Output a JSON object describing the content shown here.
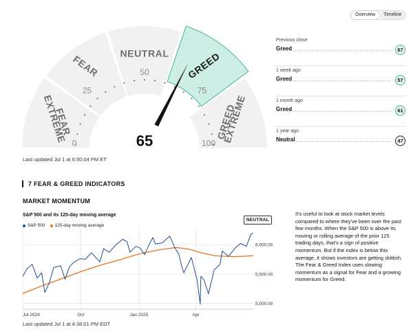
{
  "view_toggle": {
    "options": [
      "Overview",
      "Timeline"
    ],
    "active": "Overview"
  },
  "gauge": {
    "value": 65,
    "segments": [
      "EXTREME FEAR",
      "FEAR",
      "NEUTRAL",
      "GREED",
      "EXTREME GREED"
    ],
    "active_segment": "GREED",
    "tick_labels": [
      "0",
      "25",
      "50",
      "75",
      "100"
    ],
    "last_updated": "Last updated Jul 1 at 6:50:04 PM ET",
    "colors": {
      "active_fill": "#cdeee4",
      "active_stroke": "#3fb598",
      "inactive_fill": "#f1f1f1",
      "needle": "#111111"
    }
  },
  "history": [
    {
      "label": "Previous close",
      "value": "Greed",
      "score": "67",
      "color": "#3fb598",
      "bg": "#e7f6f0"
    },
    {
      "label": "1 week ago",
      "value": "Greed",
      "score": "57",
      "color": "#3fb598",
      "bg": "#e7f6f0"
    },
    {
      "label": "1 month ago",
      "value": "Greed",
      "score": "61",
      "color": "#3fb598",
      "bg": "#e7f6f0"
    },
    {
      "label": "1 year ago",
      "value": "Neutral",
      "score": "47",
      "color": "#222222",
      "bg": "#f2f2f2"
    }
  ],
  "section": {
    "title": "7 FEAR & GREED INDICATORS"
  },
  "indicator": {
    "title": "MARKET MOMENTUM",
    "status": "NEUTRAL",
    "chart_title": "S&P 500 and its 125-day moving average",
    "description": "It's useful to look at stock market levels compared to where they've been over the past few months. When the S&P 500 is above its moving or rolling average of the prior 125 trading days, that's a sign of positive momentum. But if the index is below this average, it shows investors are getting skittish. The Fear & Greed Index uses slowing momentum as a signal for Fear and a growing momentum for Greed.",
    "last_updated": "Last updated Jul 1 at 4:36:01 PM EDT"
  },
  "chart_data": {
    "type": "line",
    "title": "S&P 500 and its 125-day moving average",
    "x_ticks": [
      "Jul 2024",
      "Oct",
      "Jan 2025",
      "Apr"
    ],
    "x_tick_dates": [
      "2024-07-01",
      "2024-10-01",
      "2025-01-01",
      "2025-04-01"
    ],
    "y_ticks": [
      "5,000.00",
      "5,500.00",
      "6,000.00"
    ],
    "y_tick_values": [
      5000,
      5500,
      6000
    ],
    "ylim": [
      4900,
      6260
    ],
    "xlim": [
      "2024-07-01",
      "2025-07-01"
    ],
    "grid": true,
    "legend": "top-left",
    "series": [
      {
        "name": "S&P 500",
        "color": "#1f4e8c",
        "points": [
          [
            "2024-07-01",
            5460
          ],
          [
            "2024-07-08",
            5590
          ],
          [
            "2024-07-16",
            5665
          ],
          [
            "2024-07-24",
            5430
          ],
          [
            "2024-07-31",
            5520
          ],
          [
            "2024-08-05",
            5185
          ],
          [
            "2024-08-12",
            5345
          ],
          [
            "2024-08-19",
            5610
          ],
          [
            "2024-08-30",
            5640
          ],
          [
            "2024-09-06",
            5410
          ],
          [
            "2024-09-13",
            5625
          ],
          [
            "2024-09-20",
            5700
          ],
          [
            "2024-09-30",
            5760
          ],
          [
            "2024-10-08",
            5750
          ],
          [
            "2024-10-18",
            5860
          ],
          [
            "2024-10-31",
            5705
          ],
          [
            "2024-11-06",
            5930
          ],
          [
            "2024-11-15",
            5870
          ],
          [
            "2024-11-25",
            5990
          ],
          [
            "2024-12-06",
            6090
          ],
          [
            "2024-12-13",
            6050
          ],
          [
            "2024-12-18",
            5870
          ],
          [
            "2024-12-27",
            5970
          ],
          [
            "2025-01-03",
            5940
          ],
          [
            "2025-01-10",
            5830
          ],
          [
            "2025-01-17",
            6000
          ],
          [
            "2025-01-23",
            6120
          ],
          [
            "2025-01-27",
            6010
          ],
          [
            "2025-02-07",
            6030
          ],
          [
            "2025-02-19",
            6145
          ],
          [
            "2025-02-26",
            5960
          ],
          [
            "2025-03-05",
            5840
          ],
          [
            "2025-03-10",
            5615
          ],
          [
            "2025-03-13",
            5520
          ],
          [
            "2025-03-25",
            5780
          ],
          [
            "2025-04-03",
            5400
          ],
          [
            "2025-04-08",
            4985
          ],
          [
            "2025-04-09",
            5460
          ],
          [
            "2025-04-14",
            5400
          ],
          [
            "2025-04-21",
            5160
          ],
          [
            "2025-04-30",
            5570
          ],
          [
            "2025-05-09",
            5660
          ],
          [
            "2025-05-13",
            5890
          ],
          [
            "2025-05-23",
            5800
          ],
          [
            "2025-06-02",
            5940
          ],
          [
            "2025-06-11",
            6020
          ],
          [
            "2025-06-20",
            5970
          ],
          [
            "2025-06-27",
            6170
          ],
          [
            "2025-07-01",
            6200
          ]
        ]
      },
      {
        "name": "125-day moving average",
        "color": "#e9731f",
        "points": [
          [
            "2024-07-01",
            5170
          ],
          [
            "2024-08-01",
            5300
          ],
          [
            "2024-09-01",
            5420
          ],
          [
            "2024-10-01",
            5540
          ],
          [
            "2024-11-01",
            5650
          ],
          [
            "2024-12-01",
            5740
          ],
          [
            "2025-01-01",
            5840
          ],
          [
            "2025-02-01",
            5910
          ],
          [
            "2025-03-01",
            5950
          ],
          [
            "2025-03-20",
            5925
          ],
          [
            "2025-04-10",
            5860
          ],
          [
            "2025-05-01",
            5810
          ],
          [
            "2025-06-01",
            5795
          ],
          [
            "2025-07-01",
            5810
          ]
        ]
      }
    ]
  }
}
